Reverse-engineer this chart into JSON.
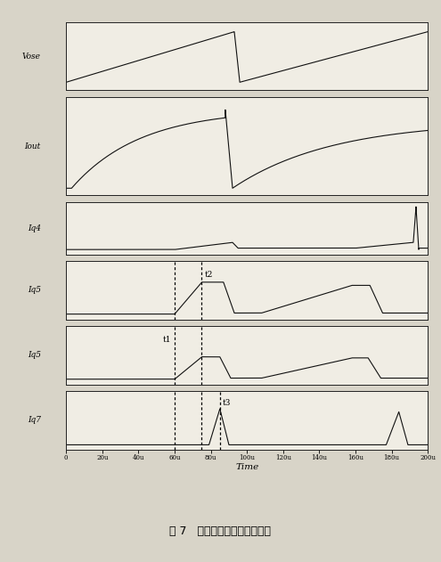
{
  "title_caption": "图 7   斜坡补偿电路的仿真波形",
  "xlabel": "Time",
  "time_range": [
    0,
    200
  ],
  "xtick_labels": [
    "0",
    "20u",
    "40u",
    "60u",
    "80u",
    "100u",
    "120u",
    "140u",
    "160u",
    "180u",
    "200u"
  ],
  "xtick_positions": [
    0,
    20,
    40,
    60,
    80,
    100,
    120,
    140,
    160,
    180,
    200
  ],
  "subplot_labels_display": [
    "Vose",
    "Iout",
    "Iq4",
    "Iq5",
    "Iq5",
    "Iq7"
  ],
  "t1": 60,
  "t2": 75,
  "t3": 85,
  "background_color": "#d8d4c8",
  "plot_bg": "#f0ede4",
  "line_color": "#111111"
}
